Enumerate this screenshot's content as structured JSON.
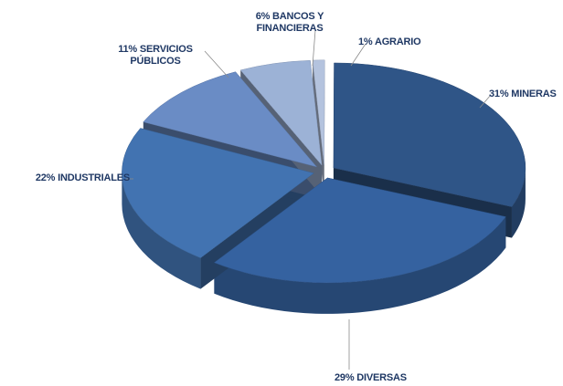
{
  "chart_data": {
    "type": "pie3d",
    "categories": [
      "AGRARIO",
      "MINERAS",
      "DIVERSAS",
      "INDUSTRIALES",
      "SERVICIOS PÚBLICOS",
      "BANCOS Y FINANCIERAS"
    ],
    "values": [
      1,
      31,
      29,
      22,
      11,
      6
    ],
    "value_labels": [
      "1%",
      "31%",
      "29%",
      "22%",
      "11%",
      "6%"
    ],
    "colors": [
      "#b4c3de",
      "#2f5587",
      "#3562a0",
      "#4273b1",
      "#6a8cc5",
      "#9cb2d6"
    ]
  }
}
